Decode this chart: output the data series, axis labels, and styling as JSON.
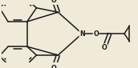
{
  "bg_color": "#f0ead8",
  "bond_color": "#1a1a1a",
  "atom_color": "#1a1a1a",
  "line_width": 1.1,
  "fig_width": 1.72,
  "fig_height": 0.85,
  "dpi": 100,
  "xlim": [
    -1.05,
    1.35
  ],
  "ylim": [
    -0.52,
    0.52
  ]
}
